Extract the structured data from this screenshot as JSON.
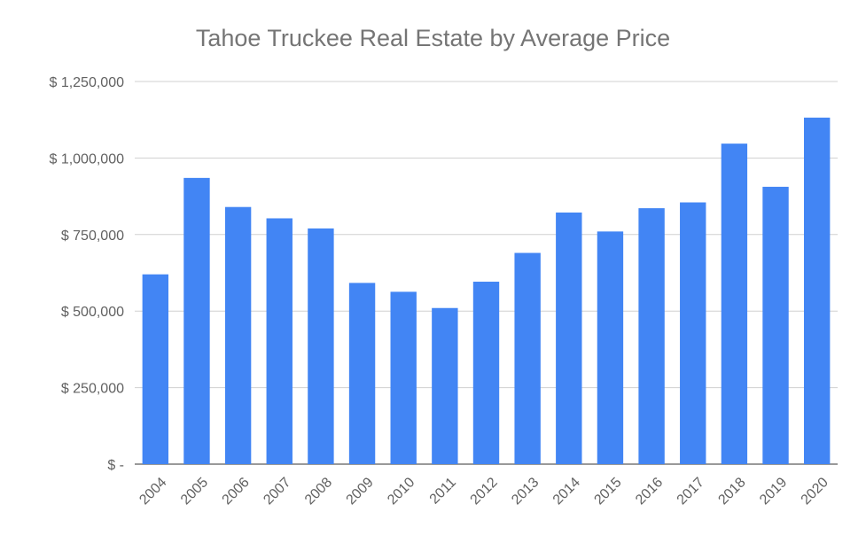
{
  "chart_data": {
    "type": "bar",
    "title": "Tahoe Truckee Real Estate by Average Price",
    "xlabel": "",
    "ylabel": "",
    "categories": [
      "2004",
      "2005",
      "2006",
      "2007",
      "2008",
      "2009",
      "2010",
      "2011",
      "2012",
      "2013",
      "2014",
      "2015",
      "2016",
      "2017",
      "2018",
      "2019",
      "2020"
    ],
    "values": [
      620000,
      935000,
      840000,
      803000,
      770000,
      592000,
      563000,
      510000,
      596000,
      690000,
      822000,
      760000,
      836000,
      855000,
      1047000,
      906000,
      1132000
    ],
    "ylim": [
      0,
      1250000
    ],
    "yticks": [
      0,
      250000,
      500000,
      750000,
      1000000,
      1250000
    ],
    "ytick_labels": [
      "$ -",
      "$ 250,000",
      "$ 500,000",
      "$ 750,000",
      "$ 1,000,000",
      "$ 1,250,000"
    ],
    "bar_color": "#4285f4",
    "grid": true,
    "legend": "none"
  }
}
